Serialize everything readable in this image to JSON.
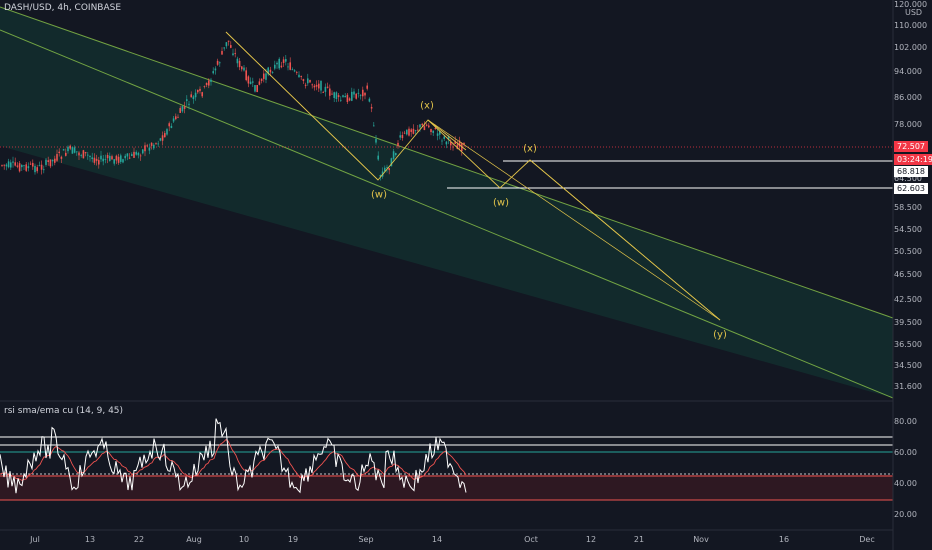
{
  "header": {
    "symbol_title": "DASH/USD, 4h, COINBASE",
    "currency": "USD"
  },
  "price_axis": {
    "ticks": [
      "120.000",
      "110.000",
      "102.000",
      "94.000",
      "86.000",
      "78.000",
      "70.000",
      "68.818",
      "64.500",
      "62.603",
      "58.500",
      "54.500",
      "50.500",
      "46.500",
      "42.500",
      "39.500",
      "36.500",
      "34.500",
      "31.600"
    ],
    "last_price": "72.507",
    "countdown": "03:24:19",
    "level_upper": "68.818",
    "level_lower": "62.603"
  },
  "time_axis": {
    "labels": [
      "Jul",
      "13",
      "22",
      "Aug",
      "10",
      "19",
      "Sep",
      "14",
      "Oct",
      "12",
      "21",
      "Nov",
      "16",
      "Dec"
    ]
  },
  "wave_labels": {
    "w1": "(w)",
    "x1": "(x)",
    "w2": "(w)",
    "x2": "(x)",
    "y": "(y)"
  },
  "rsi_pane": {
    "title": "rsi sma/ema cu (14, 9, 45)",
    "ticks": [
      "80.00",
      "60.00",
      "40.00",
      "20.00"
    ]
  },
  "colors": {
    "background": "#131722",
    "bullish": "#26a69a",
    "bearish": "#ef5350",
    "channel": "#8bc34a",
    "wave_lines": "#e1c34a",
    "price_tag": "#f23645"
  }
}
